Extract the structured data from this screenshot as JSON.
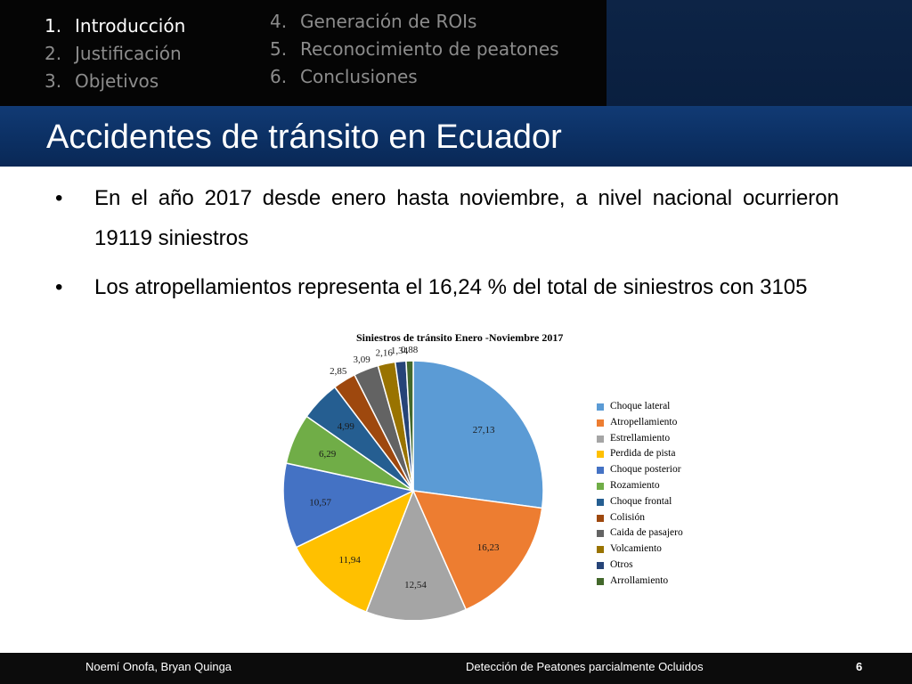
{
  "nav": {
    "left": [
      {
        "num": "1.",
        "label": "Introducción",
        "active": true
      },
      {
        "num": "2.",
        "label": "Justificación",
        "active": false
      },
      {
        "num": "3.",
        "label": "Objetivos",
        "active": false
      }
    ],
    "right": [
      {
        "num": "4.",
        "label": "Generación de ROIs"
      },
      {
        "num": "5.",
        "label": "Reconocimiento de peatones"
      },
      {
        "num": "6.",
        "label": "Conclusiones"
      }
    ]
  },
  "slide": {
    "title": "Accidentes de tránsito en Ecuador",
    "bullet_glyph": "•",
    "bullets": [
      "En el año 2017 desde enero hasta noviembre, a nivel nacional ocurrieron 19119 siniestros",
      "Los atropellamientos representa el 16,24 % del total de siniestros con 3105"
    ]
  },
  "chart_data": {
    "type": "pie",
    "title": "Siniestros de tránsito Enero -Noviembre 2017",
    "categories": [
      "Choque lateral",
      "Atropellamiento",
      "Estrellamiento",
      "Perdida de pista",
      "Choque posterior",
      "Rozamiento",
      "Choque frontal",
      "Colisión",
      "Caida de pasajero",
      "Volcamiento",
      "Otros",
      "Arrollamiento"
    ],
    "values": [
      27.13,
      16.23,
      12.54,
      11.94,
      10.57,
      6.29,
      4.99,
      2.85,
      3.09,
      2.16,
      1.34,
      0.88
    ],
    "labels": [
      "27,13",
      "16,23",
      "12,54",
      "11,94",
      "10,57",
      "6,29",
      "4,99",
      "2,85",
      "3,09",
      "2,16",
      "1,34",
      "0,88"
    ],
    "colors": [
      "#5b9bd5",
      "#ed7d31",
      "#a5a5a5",
      "#ffc000",
      "#4472c4",
      "#70ad47",
      "#255e91",
      "#9e480e",
      "#636363",
      "#997300",
      "#264478",
      "#43682b"
    ],
    "legend_position": "right"
  },
  "footer": {
    "authors": "Noemí Onofa, Bryan Quinga",
    "topic": "Detección de Peatones parcialmente Ocluidos",
    "page": "6"
  }
}
